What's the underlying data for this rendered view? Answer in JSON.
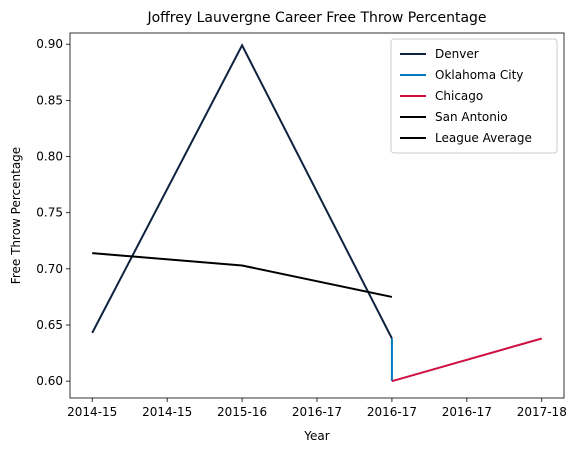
{
  "chart_data": {
    "type": "line",
    "title": "Joffrey Lauvergne Career Free Throw Percentage",
    "xlabel": "Year",
    "ylabel": "Free Throw Percentage",
    "x_tick_labels": [
      "2014-15",
      "2014-15",
      "2015-16",
      "2016-17",
      "2016-17",
      "2016-17",
      "2017-18"
    ],
    "xlim": [
      0,
      3
    ],
    "ylim": [
      0.585,
      0.91
    ],
    "y_ticks": [
      0.6,
      0.65,
      0.7,
      0.75,
      0.8,
      0.85,
      0.9
    ],
    "y_tick_labels": [
      "0.60",
      "0.65",
      "0.70",
      "0.75",
      "0.80",
      "0.85",
      "0.90"
    ],
    "grid": false,
    "legend_position": "top-right",
    "series": [
      {
        "name": "Denver",
        "color": "#0e2240",
        "x": [
          0,
          1,
          2
        ],
        "y": [
          0.643,
          0.899,
          0.638
        ]
      },
      {
        "name": "Oklahoma City",
        "color": "#007ac1",
        "x": [
          2,
          2
        ],
        "y": [
          0.638,
          0.6
        ]
      },
      {
        "name": "Chicago",
        "color": "#ce1141",
        "x": [
          2,
          3
        ],
        "y": [
          0.6,
          0.638
        ]
      },
      {
        "name": "San Antonio",
        "color": "#000000",
        "x": [
          2,
          2
        ],
        "y": [
          0.6,
          0.6
        ]
      },
      {
        "name": "League Average",
        "color": "#000000",
        "x": [
          0,
          1,
          2
        ],
        "y": [
          0.714,
          0.703,
          0.675
        ]
      }
    ]
  }
}
